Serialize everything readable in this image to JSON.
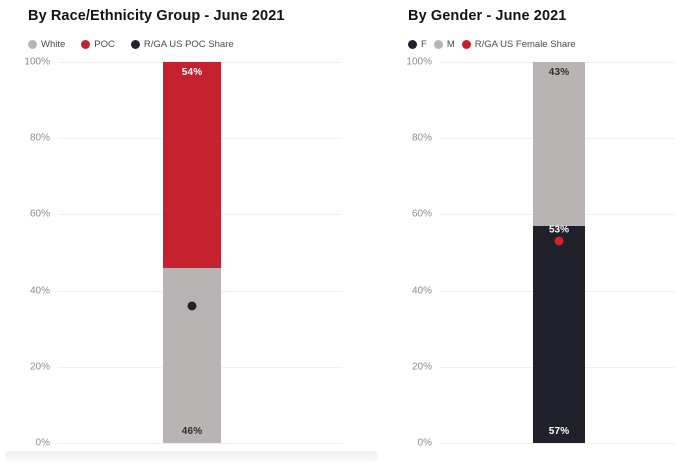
{
  "page": {
    "background": "#ffffff",
    "accent_red": "#c5212f",
    "neutral_gray": "#b8b4b4",
    "neutral_dark": "#20202b",
    "gridline_color": "#f0f0f0",
    "tick_color": "#8c8c8c"
  },
  "charts": [
    {
      "title": "By Race/Ethnicity Group - June 2021",
      "legend": [
        {
          "label": "White",
          "color": "#b8b4b4"
        },
        {
          "label": "POC",
          "color": "#c5212f"
        },
        {
          "label": "R/GA US POC Share",
          "color": "#23232d"
        }
      ],
      "y_ticks": [
        {
          "label": "100%",
          "value": 100
        },
        {
          "label": "80%",
          "value": 80
        },
        {
          "label": "60%",
          "value": 60
        },
        {
          "label": "40%",
          "value": 40
        },
        {
          "label": "20%",
          "value": 20
        },
        {
          "label": "0%",
          "value": 0
        }
      ],
      "segments": [
        {
          "name": "White",
          "value": 46,
          "color": "#b8b4b4",
          "label": "46%",
          "label_pos": "bottom",
          "label_color": "#2e2e2e"
        },
        {
          "name": "POC",
          "value": 54,
          "color": "#c5212f",
          "label": "54%",
          "label_pos": "top",
          "label_color": "#ffffff"
        }
      ],
      "marker": {
        "name": "R/GA US POC Share",
        "value": 36,
        "color": "#23232d",
        "label": ""
      }
    },
    {
      "title": "By Gender - June 2021",
      "legend": [
        {
          "label": "F",
          "color": "#20202b"
        },
        {
          "label": "M",
          "color": "#b8b4b4"
        },
        {
          "label": "R/GA US Female Share",
          "color": "#c5212f"
        }
      ],
      "y_ticks": [
        {
          "label": "100%",
          "value": 100
        },
        {
          "label": "80%",
          "value": 80
        },
        {
          "label": "60%",
          "value": 60
        },
        {
          "label": "40%",
          "value": 40
        },
        {
          "label": "20%",
          "value": 20
        },
        {
          "label": "0%",
          "value": 0
        }
      ],
      "segments": [
        {
          "name": "F",
          "value": 57,
          "color": "#20202b",
          "label": "57%",
          "label_pos": "bottom",
          "label_color": "#ffffff"
        },
        {
          "name": "M",
          "value": 43,
          "color": "#b8b4b4",
          "label": "43%",
          "label_pos": "top",
          "label_color": "#2e2e2e"
        }
      ],
      "marker": {
        "name": "R/GA US Female Share",
        "value": 53,
        "color": "#d0202e",
        "label": "53%"
      }
    }
  ],
  "chart_data": [
    {
      "type": "bar",
      "subtype": "stacked-100-percent",
      "title": "By Race/Ethnicity Group - June 2021",
      "categories": [
        ""
      ],
      "series": [
        {
          "name": "White",
          "type": "bar",
          "values": [
            46
          ],
          "color": "#b8b4b4"
        },
        {
          "name": "POC",
          "type": "bar",
          "values": [
            54
          ],
          "color": "#c5212f"
        },
        {
          "name": "R/GA US POC Share",
          "type": "point",
          "values": [
            36
          ],
          "color": "#23232d"
        }
      ],
      "xlabel": "",
      "ylabel": "",
      "ylim": [
        0,
        100
      ],
      "y_tick_labels": [
        "0%",
        "20%",
        "40%",
        "60%",
        "80%",
        "100%"
      ],
      "grid": true,
      "legend_position": "top-left"
    },
    {
      "type": "bar",
      "subtype": "stacked-100-percent",
      "title": "By Gender - June 2021",
      "categories": [
        ""
      ],
      "series": [
        {
          "name": "F",
          "type": "bar",
          "values": [
            57
          ],
          "color": "#20202b"
        },
        {
          "name": "M",
          "type": "bar",
          "values": [
            43
          ],
          "color": "#b8b4b4"
        },
        {
          "name": "R/GA US Female Share",
          "type": "point",
          "values": [
            53
          ],
          "color": "#d0202e"
        }
      ],
      "xlabel": "",
      "ylabel": "",
      "ylim": [
        0,
        100
      ],
      "y_tick_labels": [
        "0%",
        "20%",
        "40%",
        "60%",
        "80%",
        "100%"
      ],
      "grid": true,
      "legend_position": "top-left"
    }
  ]
}
